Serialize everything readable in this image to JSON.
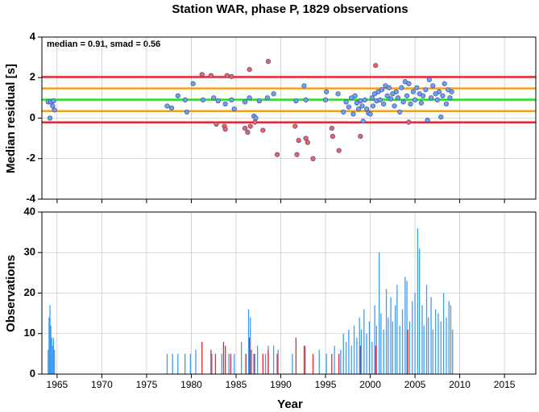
{
  "chart_data": [
    {
      "type": "scatter",
      "title": "Station WAR, phase P, 1829 observations",
      "y_label": "Median residual [s]",
      "annotation": "median = 0.91, smad = 0.56",
      "xlim": [
        1963.3,
        2018.5
      ],
      "xticks": [
        1965,
        1970,
        1975,
        1980,
        1985,
        1990,
        1995,
        2000,
        2005,
        2010,
        2015
      ],
      "ylim": [
        -4,
        4
      ],
      "yticks": [
        -4,
        -2,
        0,
        2,
        4
      ],
      "grid": true,
      "ref_lines": [
        {
          "value": 2.03,
          "color": "#e8262e"
        },
        {
          "value": 1.47,
          "color": "#f0a020"
        },
        {
          "value": 0.91,
          "color": "#22e022"
        },
        {
          "value": 0.35,
          "color": "#f0a020"
        },
        {
          "value": -0.21,
          "color": "#e8262e"
        }
      ],
      "series": [
        {
          "color": "#6f9ff0",
          "x": [
            1964.0,
            1964.2,
            1964.3,
            1964.5,
            1964.6,
            1964.7,
            1977.3,
            1977.8,
            1978.5,
            1979.3,
            1979.5,
            1980.2,
            1981.3,
            1982.5,
            1983.0,
            1983.8,
            1984.5,
            1984.8,
            1986.0,
            1986.5,
            1987.0,
            1987.2,
            1987.6,
            1988.5,
            1989.2,
            1991.7,
            1992.6,
            1992.8,
            1995.0,
            1995.1,
            1996.4,
            1997.0,
            1997.3,
            1997.6,
            1997.9,
            1998.1,
            1998.3,
            1998.5,
            1998.7,
            1998.9,
            1999.1,
            1999.2,
            1999.4,
            1999.6,
            1999.8,
            2000.0,
            2000.2,
            2000.3,
            2000.5,
            2000.7,
            2000.9,
            2001.1,
            2001.3,
            2001.5,
            2001.7,
            2001.9,
            2002.1,
            2002.3,
            2002.5,
            2002.7,
            2002.9,
            2003.1,
            2003.3,
            2003.5,
            2003.7,
            2003.9,
            2004.1,
            2004.3,
            2004.5,
            2004.8,
            2005.0,
            2005.2,
            2005.5,
            2005.7,
            2005.9,
            2006.2,
            2006.4,
            2006.6,
            2006.8,
            2007.0,
            2007.3,
            2007.5,
            2007.7,
            2007.9,
            2008.1,
            2008.3,
            2008.5,
            2008.7,
            2008.9,
            2009.1
          ],
          "values": [
            0.8,
            0.0,
            0.8,
            0.6,
            0.85,
            0.4,
            0.6,
            0.5,
            1.1,
            0.9,
            0.3,
            1.7,
            0.9,
            1.0,
            0.85,
            0.7,
            0.9,
            0.45,
            0.8,
            1.0,
            0.1,
            0.0,
            0.85,
            1.0,
            1.2,
            0.85,
            1.6,
            0.9,
            0.9,
            1.3,
            1.2,
            0.3,
            0.8,
            0.55,
            1.0,
            0.2,
            1.1,
            0.75,
            0.45,
            0.85,
            0.6,
            -0.15,
            0.9,
            0.45,
            0.25,
            0.2,
            1.0,
            0.6,
            1.2,
            0.85,
            1.3,
            0.9,
            1.4,
            0.7,
            1.6,
            1.1,
            1.5,
            0.95,
            1.2,
            0.6,
            1.3,
            1.0,
            0.3,
            1.5,
            0.8,
            1.8,
            1.1,
            1.7,
            0.7,
            1.3,
            0.9,
            1.5,
            1.2,
            0.75,
            1.1,
            1.4,
            -0.1,
            1.9,
            1.0,
            1.6,
            1.2,
            0.9,
            1.3,
            0.05,
            1.1,
            1.7,
            0.7,
            1.4,
            1.0,
            1.3
          ]
        },
        {
          "color": "#f06060",
          "x": [
            1981.2,
            1982.2,
            1982.8,
            1983.7,
            1983.8,
            1984.0,
            1984.5,
            1986.0,
            1986.3,
            1986.5,
            1986.6,
            1987.1,
            1988.0,
            1988.6,
            1989.6,
            1991.6,
            1991.8,
            1992.0,
            1992.8,
            1993.0,
            1993.6,
            1995.7,
            1995.8,
            1996.5,
            1998.9,
            2000.6,
            2004.3
          ],
          "values": [
            2.15,
            2.1,
            -0.3,
            -0.4,
            -0.55,
            2.1,
            2.05,
            -0.5,
            -0.7,
            2.4,
            -0.4,
            -0.2,
            -0.6,
            2.8,
            -1.8,
            -0.4,
            -1.8,
            -1.1,
            -1.0,
            -1.2,
            -2.0,
            -0.5,
            -0.9,
            -1.6,
            -0.9,
            2.6,
            -0.2
          ]
        }
      ]
    },
    {
      "type": "bar",
      "y_label": "Observations",
      "x_label": "Year",
      "xlim": [
        1963.3,
        2018.5
      ],
      "xticks": [
        1965,
        1970,
        1975,
        1980,
        1985,
        1990,
        1995,
        2000,
        2005,
        2010,
        2015
      ],
      "ylim": [
        0,
        40
      ],
      "yticks": [
        0,
        10,
        20,
        30,
        40
      ],
      "grid": true,
      "series": [
        {
          "color": "#3f9cf0",
          "x": [
            1964.0,
            1964.1,
            1964.2,
            1964.3,
            1964.4,
            1964.5,
            1964.6,
            1964.7,
            1977.3,
            1977.9,
            1978.5,
            1979.3,
            1979.9,
            1980.5,
            1982.3,
            1983.4,
            1984.2,
            1984.8,
            1985.6,
            1986.1,
            1986.4,
            1986.6,
            1987.1,
            1987.4,
            1988.3,
            1988.6,
            1989.2,
            1989.7,
            1991.3,
            1992.6,
            1994.3,
            1995.1,
            1996.0,
            1996.7,
            1997.0,
            1997.3,
            1997.6,
            1997.9,
            1998.2,
            1998.5,
            1998.8,
            1999.0,
            1999.3,
            1999.6,
            1999.9,
            2000.2,
            2000.5,
            2000.7,
            2001.0,
            2001.2,
            2001.5,
            2001.8,
            2002.0,
            2002.3,
            2002.5,
            2002.8,
            2003.0,
            2003.3,
            2003.6,
            2003.9,
            2004.1,
            2004.4,
            2004.7,
            2005.0,
            2005.3,
            2005.5,
            2005.8,
            2006.0,
            2006.3,
            2006.5,
            2006.8,
            2007.0,
            2007.3,
            2007.6,
            2007.9,
            2008.2,
            2008.5,
            2008.8,
            2009.0,
            2009.2
          ],
          "values": [
            6,
            14,
            17,
            12,
            9,
            7,
            9,
            6,
            5,
            5,
            5,
            5,
            5,
            6,
            5,
            5,
            5,
            5,
            8,
            5,
            16,
            14,
            5,
            7,
            5,
            7,
            7,
            6,
            5,
            7,
            6,
            5,
            7,
            6,
            10,
            8,
            11,
            7,
            12,
            9,
            14,
            11,
            16,
            10,
            13,
            8,
            17,
            12,
            30,
            15,
            11,
            21,
            14,
            19,
            13,
            17,
            22,
            12,
            16,
            24,
            23,
            13,
            18,
            20,
            36,
            31,
            17,
            12,
            22,
            14,
            19,
            11,
            16,
            15,
            13,
            20,
            14,
            18,
            17,
            11
          ]
        },
        {
          "color": "#e8262e",
          "x": [
            1981.2,
            1982.2,
            1982.7,
            1983.6,
            1983.8,
            1984.4,
            1986.1,
            1986.5,
            1986.7,
            1987.0,
            1988.0,
            1988.6,
            1989.6,
            1991.7,
            1992.7,
            1993.6,
            1995.7,
            1996.5,
            1998.9,
            2000.6,
            2004.2
          ],
          "values": [
            8,
            6,
            5,
            8,
            7,
            5,
            5,
            9,
            6,
            5,
            5,
            6,
            5,
            9,
            7,
            5,
            5,
            5,
            7,
            7,
            11
          ]
        }
      ]
    }
  ]
}
